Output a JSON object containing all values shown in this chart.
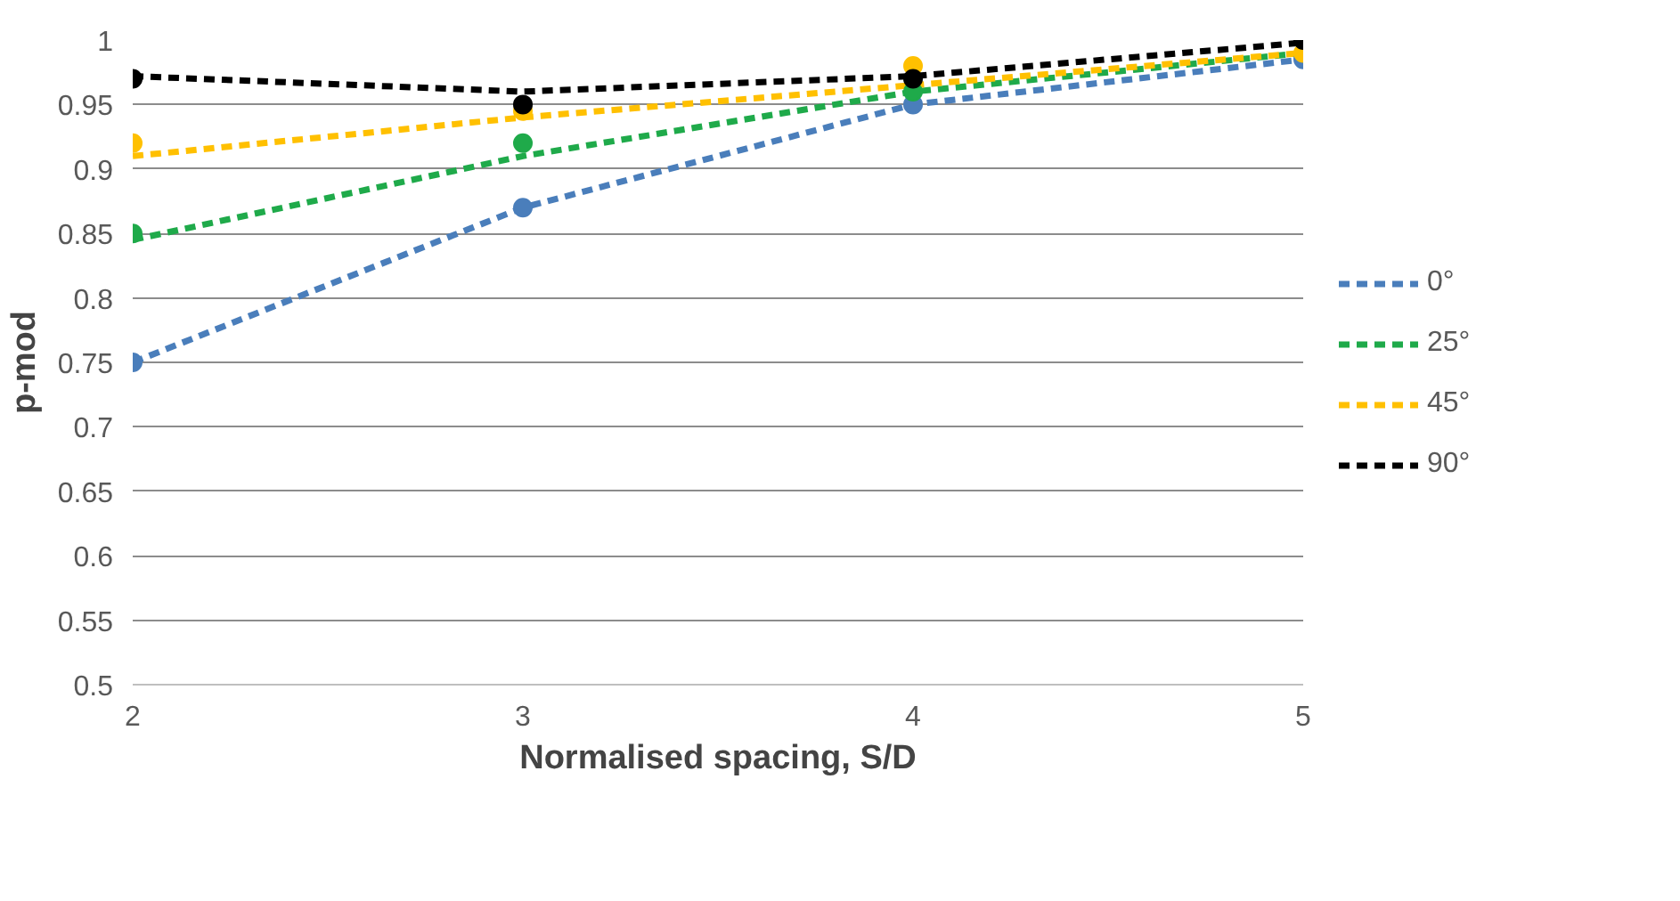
{
  "chart_data": {
    "type": "line",
    "xlabel": "Normalised spacing, S/D",
    "ylabel": "p-mod",
    "x": [
      2,
      3,
      4,
      5
    ],
    "xlim": [
      2,
      5
    ],
    "xticks": [
      2,
      3,
      4,
      5
    ],
    "ylim": [
      0.5,
      1
    ],
    "yticks": [
      0.5,
      0.55,
      0.6,
      0.65,
      0.7,
      0.75,
      0.8,
      0.85,
      0.9,
      0.95,
      1
    ],
    "grid": "y",
    "legend": "right",
    "series": [
      {
        "type": "scatter",
        "marker": "circle",
        "color": "#4a7ebb",
        "values": [
          0.75,
          0.87,
          0.95,
          0.985
        ]
      },
      {
        "type": "scatter",
        "marker": "circle",
        "color": "#1faa4a",
        "values": [
          0.85,
          0.92,
          0.96,
          null
        ]
      },
      {
        "type": "scatter",
        "marker": "circle",
        "color": "#ffc000",
        "values": [
          0.92,
          0.945,
          0.98,
          0.99
        ]
      },
      {
        "type": "scatter",
        "marker": "circle",
        "color": "#000000",
        "values": [
          0.97,
          0.95,
          0.97,
          1.0
        ]
      },
      {
        "name": "0°",
        "line_style": "dashed",
        "color": "#4a7ebb",
        "values": [
          0.75,
          0.87,
          0.95,
          0.985
        ]
      },
      {
        "name": "25°",
        "line_style": "dashed",
        "color": "#1faa4a",
        "values": [
          0.845,
          0.91,
          0.96,
          0.99
        ]
      },
      {
        "name": "45°",
        "line_style": "dashed",
        "color": "#ffc000",
        "values": [
          0.91,
          0.94,
          0.965,
          0.99
        ]
      },
      {
        "name": "90°",
        "line_style": "dashed",
        "color": "#000000",
        "values": [
          0.972,
          0.96,
          0.972,
          0.998
        ]
      }
    ]
  }
}
